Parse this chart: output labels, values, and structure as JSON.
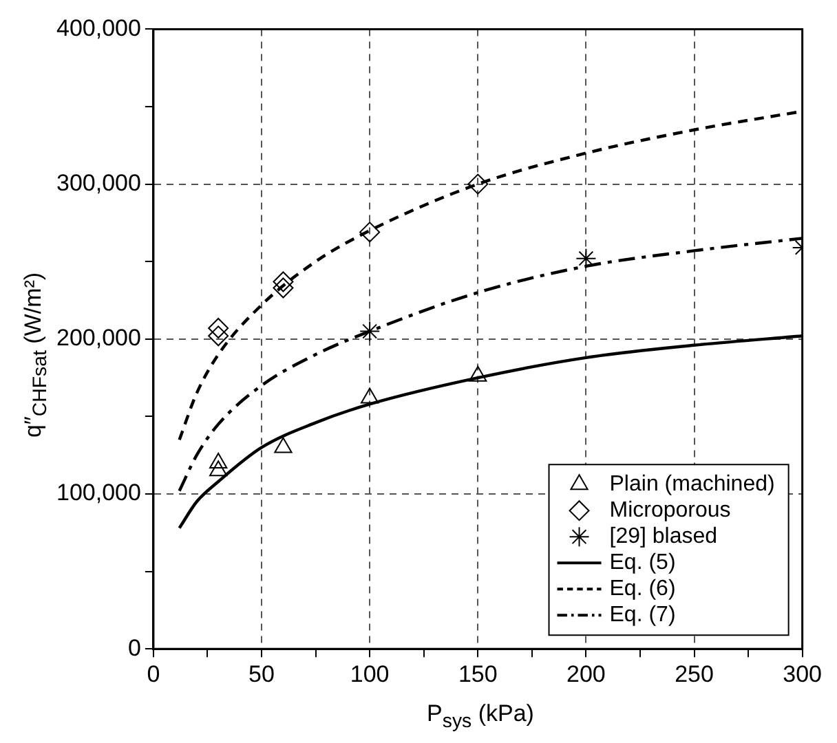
{
  "chart_data": {
    "type": "scatter",
    "xlabel": "P$_{sys}$ (kPa)",
    "ylabel": "q″$_{CHFsat}$ (W/m²)",
    "xlim": [
      0,
      300
    ],
    "xticks": [
      0,
      {
        "value": 25,
        "label": null
      },
      50,
      {
        "value": 75,
        "label": null
      },
      100,
      {
        "value": 125,
        "label": null
      },
      150,
      {
        "value": 175,
        "label": null
      },
      200,
      {
        "value": 225,
        "label": null
      },
      250,
      {
        "value": 275,
        "label": null
      },
      300
    ],
    "ylim": [
      0,
      400000
    ],
    "yticks": [
      {
        "value": 0,
        "label": "0"
      },
      {
        "value": 50000,
        "label": null
      },
      {
        "value": 100000,
        "label": "100,000"
      },
      {
        "value": 150000,
        "label": null
      },
      {
        "value": 200000,
        "label": "200,000"
      },
      {
        "value": 250000,
        "label": null
      },
      {
        "value": 300000,
        "label": "300,000"
      },
      {
        "value": 350000,
        "label": null
      },
      {
        "value": 400000,
        "label": "400,000"
      }
    ],
    "grid": true,
    "legend": "bottom right",
    "series": [
      {
        "name": "Plain (machined)",
        "type": "scatter",
        "marker": "triangle",
        "color": "#000000",
        "x": [
          30,
          30,
          60,
          100,
          150
        ],
        "values": [
          120000,
          115000,
          130000,
          162000,
          176000
        ]
      },
      {
        "name": "Microporous",
        "type": "scatter",
        "marker": "diamond",
        "color": "#000000",
        "x": [
          30,
          30,
          60,
          60,
          100,
          150
        ],
        "values": [
          207000,
          202000,
          237000,
          233000,
          269000,
          300000
        ]
      },
      {
        "name": "[29] blased",
        "type": "scatter",
        "marker": "cross",
        "color": "#000000",
        "x": [
          100,
          200,
          300
        ],
        "values": [
          205000,
          252000,
          259000
        ]
      },
      {
        "name": "Eq. (5)",
        "type": "line",
        "line_style": "solid",
        "color": "#000000",
        "x": [
          12,
          20,
          30,
          50,
          75,
          100,
          150,
          200,
          250,
          300
        ],
        "values": [
          78000,
          95000,
          108000,
          130000,
          146000,
          158000,
          175000,
          188000,
          196000,
          202000
        ]
      },
      {
        "name": "Eq. (6)",
        "type": "line",
        "line_style": "dashed",
        "color": "#000000",
        "x": [
          12,
          20,
          30,
          50,
          75,
          100,
          150,
          200,
          250,
          300
        ],
        "values": [
          135000,
          165000,
          190000,
          222000,
          250000,
          270000,
          300000,
          320000,
          335000,
          347000
        ]
      },
      {
        "name": "Eq. (7)",
        "type": "line",
        "line_style": "dashdot",
        "color": "#000000",
        "x": [
          12,
          20,
          30,
          50,
          75,
          100,
          150,
          200,
          250,
          300
        ],
        "values": [
          102000,
          125000,
          145000,
          170000,
          190000,
          205000,
          230000,
          247000,
          257000,
          265000
        ]
      }
    ]
  }
}
